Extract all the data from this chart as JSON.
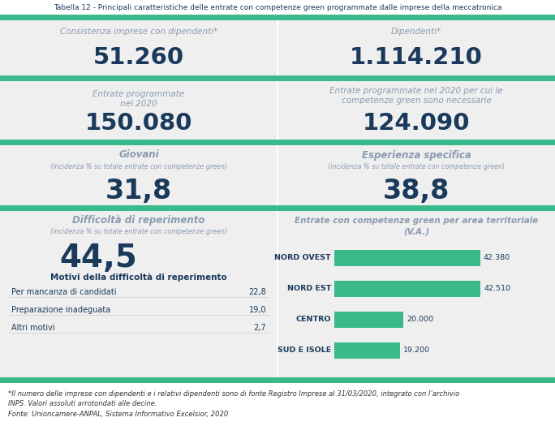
{
  "title": "Tabella 12 - Principali caratteristiche delle entrate con competenze green programmate dalle imprese della meccatronica",
  "color_green": "#3ab98a",
  "color_light_gray": "#efefef",
  "color_white": "#ffffff",
  "color_dark_blue": "#1a3a5c",
  "color_separator": "#3ab98a",
  "color_border": "#cccccc",
  "cell1_label": "Consistenza imprese con dipendenti*",
  "cell1_value": "51.260",
  "cell2_label": "Dipendenti*",
  "cell2_value": "1.114.210",
  "cell3_label_line1": "Entrate programmate",
  "cell3_label_line2": "nel 2020",
  "cell3_value": "150.080",
  "cell4_label": "Entrate programmate nel 2020 per cui le\ncompetenze green sono necessarie",
  "cell4_value": "124.090",
  "cell5_label": "Giovani",
  "cell5_sublabel": "(incidenza % su totale entrate con competenze green)",
  "cell5_value": "31,8",
  "cell6_label": "Esperienza specifica",
  "cell6_sublabel": "(incidenza % su totale entrate con competenze green)",
  "cell6_value": "38,8",
  "cell7_label": "Difficoltà di reperimento",
  "cell7_sublabel": "(incidenza % su totale entrate con competenze green)",
  "cell7_value": "44,5",
  "cell7_motivi_title": "Motivi della difficoltà di reperimento",
  "cell7_items": [
    {
      "label": "Per mancanza di candidati",
      "value": "22,8"
    },
    {
      "label": "Preparazione inadeguata",
      "value": "19,0"
    },
    {
      "label": "Altri motivi",
      "value": "2,7"
    }
  ],
  "cell8_label_line1": "Entrate con competenze green per area territoriale",
  "cell8_label_line2": "(V.A.)",
  "bar_data": [
    {
      "label": "NORD OVEST",
      "value": 42380,
      "display": "42.380"
    },
    {
      "label": "NORD EST",
      "value": 42510,
      "display": "42.510"
    },
    {
      "label": "CENTRO",
      "value": 20000,
      "display": "20.000"
    },
    {
      "label": "SUD E ISOLE",
      "value": 19200,
      "display": "19.200"
    }
  ],
  "footnote1": "*Il numero delle imprese con dipendenti e i relativi dipendenti sono di fonte Registro Imprese al 31/03/2020, integrato con l’archivio",
  "footnote2": "INPS. Valori assoluti arrotondati alle decine.",
  "footnote3": "Fonte: Unioncamere-ANPAL, Sistema Informativo Excelsior, 2020"
}
